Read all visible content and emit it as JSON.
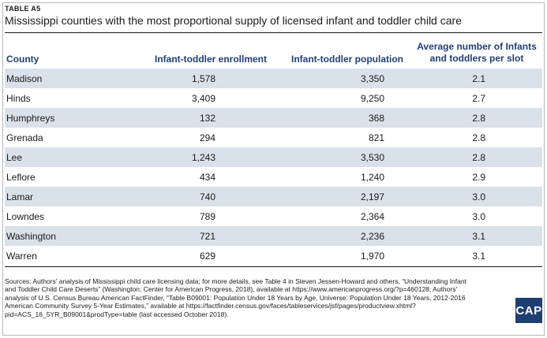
{
  "table_label": "TABLE A5",
  "title": "Mississippi counties with the most proportional supply of licensed infant and toddler child care",
  "columns": {
    "county": "County",
    "enrollment": "Infant-toddler enrollment",
    "population": "Infant-toddler population",
    "average": "Average number of Infants and toddlers per slot"
  },
  "rows": [
    {
      "county": "Madison",
      "enrollment": "1,578",
      "population": "3,350",
      "average": "2.1"
    },
    {
      "county": "Hinds",
      "enrollment": "3,409",
      "population": "9,250",
      "average": "2.7"
    },
    {
      "county": "Humphreys",
      "enrollment": "132",
      "population": "368",
      "average": "2.8"
    },
    {
      "county": "Grenada",
      "enrollment": "294",
      "population": "821",
      "average": "2.8"
    },
    {
      "county": "Lee",
      "enrollment": "1,243",
      "population": "3,530",
      "average": "2.8"
    },
    {
      "county": "Leflore",
      "enrollment": "434",
      "population": "1,240",
      "average": "2.9"
    },
    {
      "county": "Lamar",
      "enrollment": "740",
      "population": "2,197",
      "average": "3.0"
    },
    {
      "county": "Lowndes",
      "enrollment": "789",
      "population": "2,364",
      "average": "3.0"
    },
    {
      "county": "Washington",
      "enrollment": "721",
      "population": "2,236",
      "average": "3.1"
    },
    {
      "county": "Warren",
      "enrollment": "629",
      "population": "1,970",
      "average": "3.1"
    }
  ],
  "footnote": "Sources: Authors' analysis of Mississippi child care licensing data; for more details, see Table 4 in Steven Jessen-Howard and others, “Understanding Infant and Toddler Child Care Deserts” (Washington: Center for American Progress, 2018), available at https://www.americanprogress.org/?p=460128; Authors' analysis of U.S. Census Bureau American FactFinder, “Table B09001: Population Under 18 Years by Age, Universe: Population Under 18 Years, 2012-2016 American Community Survey 5-Year Estimates,” available at https://factfinder.census.gov/faces/tableservices/jsf/pages/productview.xhtml?pid=ACS_16_5YR_B09001&prodType=table (last accessed October 2018).",
  "logo": "CAP",
  "colors": {
    "header_text": "#1f3f73",
    "row_shade": "#d9e1ea",
    "logo_bg": "#1f3f73"
  }
}
